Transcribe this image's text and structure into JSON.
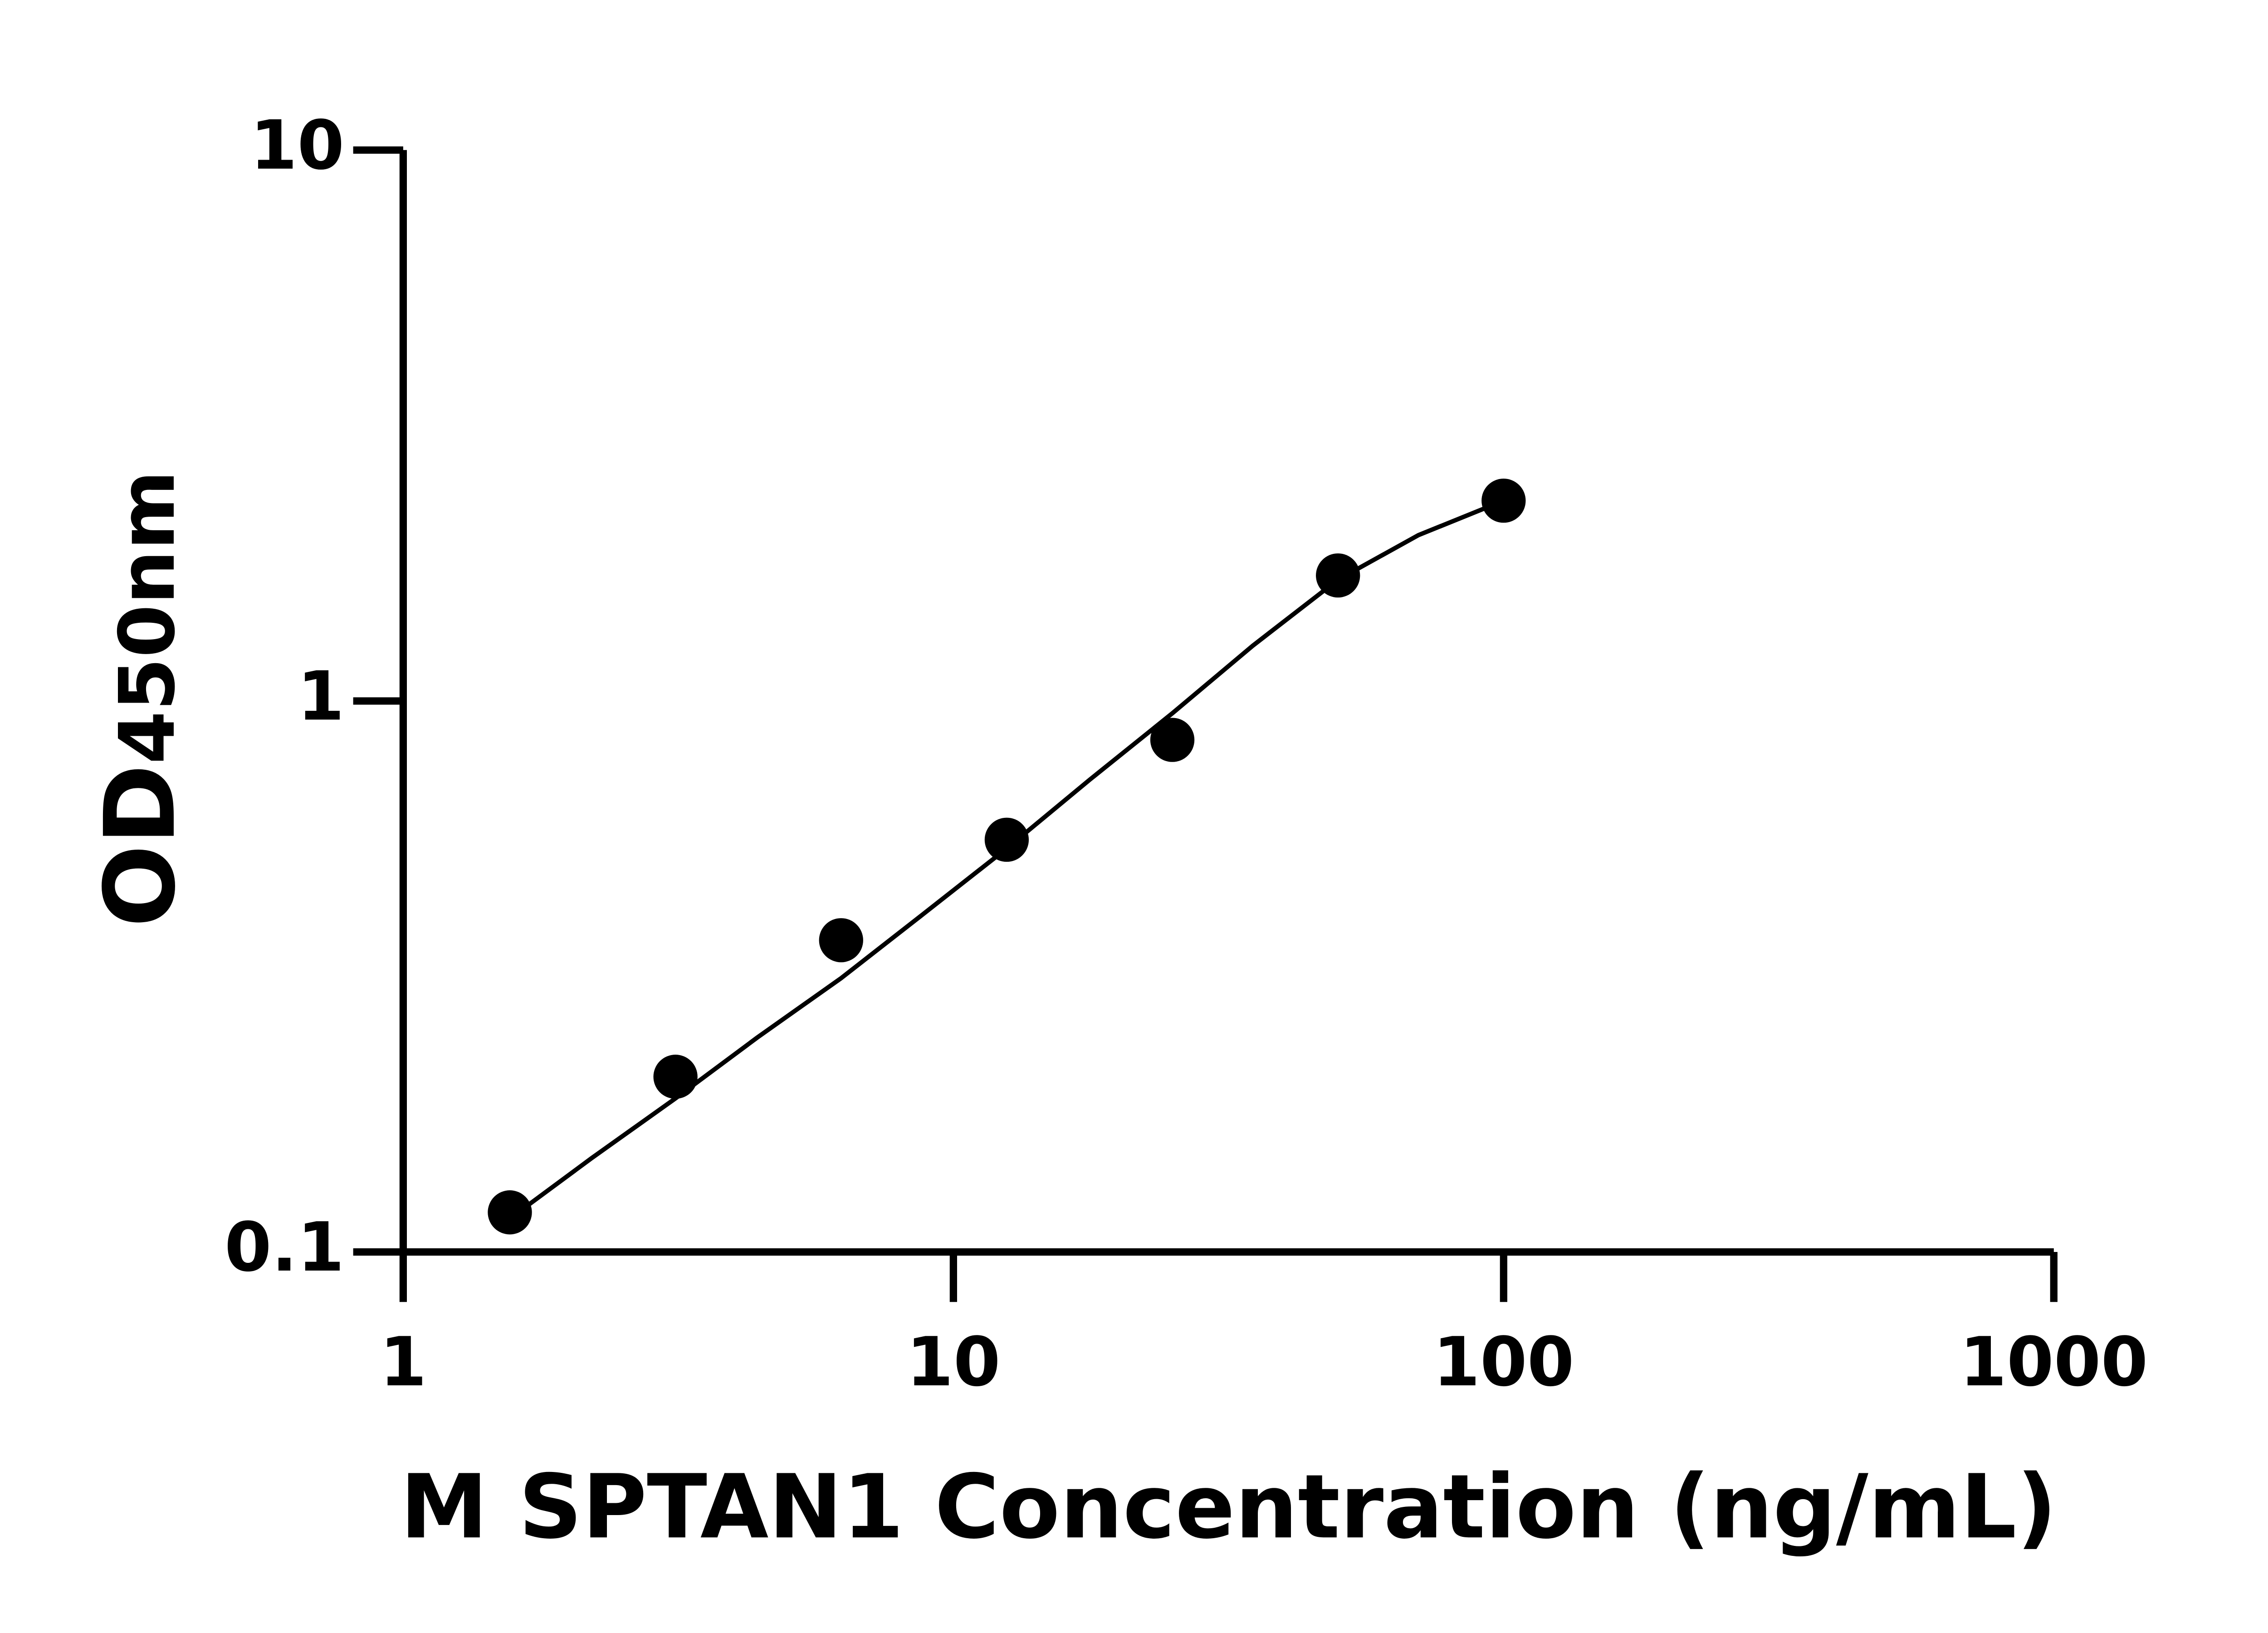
{
  "chart_data": {
    "type": "scatter",
    "xlabel": "M SPTAN1 Concentration (ng/mL)",
    "ylabel": "OD",
    "ylabel_sub": "450nm",
    "xscale": "log",
    "yscale": "log",
    "xlim": [
      1,
      1000
    ],
    "ylim": [
      0.1,
      10
    ],
    "xticks": [
      1,
      10,
      100,
      1000
    ],
    "yticks": [
      0.1,
      1,
      10
    ],
    "series": [
      {
        "color": "#000000",
        "x": [
          1.5625,
          3.125,
          6.25,
          12.5,
          25,
          50,
          100
        ],
        "values": [
          0.118,
          0.208,
          0.368,
          0.56,
          0.85,
          1.69,
          2.31
        ]
      }
    ],
    "fit": {
      "color": "#000000",
      "x": [
        1.6,
        2.2,
        3.125,
        4.4,
        6.25,
        8.8,
        12.5,
        17.7,
        25,
        35,
        50,
        70,
        100
      ],
      "values": [
        0.117,
        0.148,
        0.19,
        0.245,
        0.314,
        0.41,
        0.54,
        0.72,
        0.95,
        1.26,
        1.66,
        2.0,
        2.31
      ]
    }
  }
}
